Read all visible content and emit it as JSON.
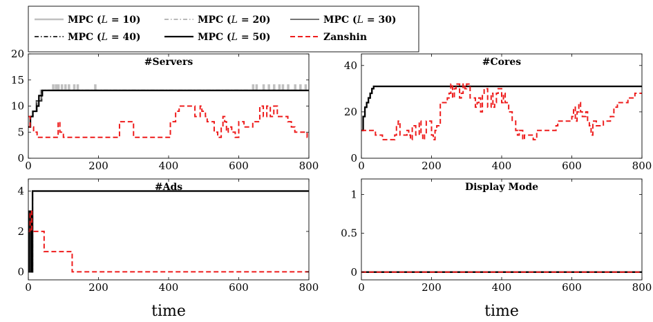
{
  "legend": {
    "entries": [
      {
        "label": "MPC (",
        "math": "L",
        "rest": " = 10)",
        "color": "#c0c0c0",
        "dash": "",
        "width": 2.5
      },
      {
        "label": "MPC (",
        "math": "L",
        "rest": " = 20)",
        "color": "#a0a0a0",
        "dash": "6 3 1.5 3",
        "width": 1.5
      },
      {
        "label": "MPC (",
        "math": "L",
        "rest": " = 30)",
        "color": "#606060",
        "dash": "",
        "width": 1.8
      },
      {
        "label": "MPC (",
        "math": "L",
        "rest": " = 40)",
        "color": "#333333",
        "dash": "6 3 1.5 3",
        "width": 2
      },
      {
        "label": "MPC (",
        "math": "L",
        "rest": " = 50)",
        "color": "#000000",
        "dash": "",
        "width": 2.2
      },
      {
        "label": "Zanshin",
        "math": "",
        "rest": "",
        "color": "#ee1c1c",
        "dash": "7 4",
        "width": 2
      }
    ]
  },
  "chart_data": [
    {
      "type": "line",
      "title": "#Servers",
      "xlabel": "",
      "xlim": [
        0,
        800
      ],
      "ylim": [
        0,
        20
      ],
      "xticks": [
        0,
        200,
        400,
        600,
        800
      ],
      "yticks": [
        0,
        5,
        10,
        15,
        20
      ],
      "series": [
        {
          "name": "MPC (L = 10)",
          "step": true,
          "color": "#c0c0c0",
          "dash": "",
          "width": 2.5,
          "x": [
            0,
            5,
            12,
            22,
            35,
            45,
            70,
            72,
            78,
            80,
            85,
            87,
            95,
            97,
            105,
            107,
            115,
            117,
            130,
            132,
            140,
            142,
            190,
            192,
            640,
            642,
            650,
            652,
            670,
            672,
            685,
            687,
            700,
            702,
            715,
            717,
            725,
            727,
            740,
            742,
            760,
            762,
            775,
            777,
            790,
            792,
            800
          ],
          "y": [
            6,
            8,
            9,
            11,
            13,
            13,
            14,
            13,
            14,
            13,
            14,
            13,
            14,
            13,
            14,
            13,
            14,
            13,
            14,
            13,
            14,
            13,
            14,
            13,
            14,
            13,
            14,
            13,
            14,
            13,
            14,
            13,
            14,
            13,
            14,
            13,
            14,
            13,
            14,
            13,
            14,
            13,
            14,
            13,
            14,
            13,
            13
          ]
        },
        {
          "name": "MPC (L = 20)",
          "step": true,
          "color": "#a0a0a0",
          "dash": "6 3 1.5 3",
          "width": 1.5,
          "x": [
            0,
            6,
            13,
            24,
            38,
            800
          ],
          "y": [
            6,
            8,
            9,
            11,
            13,
            13
          ]
        },
        {
          "name": "MPC (L = 30)",
          "step": true,
          "color": "#606060",
          "dash": "",
          "width": 1.8,
          "x": [
            0,
            6,
            13,
            24,
            38,
            800
          ],
          "y": [
            6,
            8,
            9,
            11,
            13,
            13
          ]
        },
        {
          "name": "MPC (L = 40)",
          "step": true,
          "color": "#333333",
          "dash": "6 3 1.5 3",
          "width": 2,
          "x": [
            0,
            6,
            13,
            24,
            38,
            800
          ],
          "y": [
            6,
            8,
            9,
            11,
            13,
            13
          ]
        },
        {
          "name": "MPC (L = 50)",
          "step": true,
          "color": "#000000",
          "dash": "",
          "width": 2.2,
          "x": [
            0,
            6,
            13,
            24,
            30,
            40,
            800
          ],
          "y": [
            6,
            8,
            9,
            10,
            12,
            13,
            13
          ]
        },
        {
          "name": "Zanshin",
          "step": true,
          "color": "#ee1c1c",
          "dash": "7 4",
          "width": 2,
          "x": [
            0,
            5,
            15,
            25,
            85,
            90,
            100,
            255,
            260,
            285,
            300,
            405,
            420,
            430,
            470,
            475,
            490,
            495,
            505,
            510,
            530,
            540,
            550,
            555,
            560,
            565,
            570,
            580,
            590,
            600,
            615,
            640,
            660,
            670,
            680,
            690,
            700,
            710,
            740,
            750,
            760,
            770,
            790,
            795,
            800
          ],
          "y": [
            8,
            6,
            5,
            4,
            7,
            5,
            4,
            4,
            7,
            7,
            4,
            7,
            9,
            10,
            10,
            8,
            10,
            9,
            8,
            7,
            5,
            4,
            6,
            8,
            7,
            5,
            6,
            5,
            4,
            7,
            6,
            7,
            10,
            8,
            10,
            8,
            10,
            8,
            7,
            6,
            5,
            5,
            5,
            4,
            4
          ]
        }
      ]
    },
    {
      "type": "line",
      "title": "#Cores",
      "xlabel": "",
      "xlim": [
        0,
        800
      ],
      "ylim": [
        0,
        45
      ],
      "xticks": [
        0,
        200,
        400,
        600,
        800
      ],
      "yticks": [
        0,
        20,
        40
      ],
      "series": [
        {
          "name": "MPC (L = 10)",
          "step": true,
          "color": "#c0c0c0",
          "dash": "",
          "width": 2.5,
          "x": [
            0,
            5,
            10,
            15,
            20,
            25,
            30,
            35,
            800
          ],
          "y": [
            12,
            18,
            22,
            24,
            26,
            28,
            30,
            31,
            31
          ]
        },
        {
          "name": "MPC (L = 20)",
          "step": true,
          "color": "#a0a0a0",
          "dash": "6 3 1.5 3",
          "width": 1.5,
          "x": [
            0,
            5,
            10,
            15,
            20,
            25,
            30,
            35,
            800
          ],
          "y": [
            12,
            18,
            22,
            24,
            26,
            28,
            30,
            31,
            31
          ]
        },
        {
          "name": "MPC (L = 30)",
          "step": true,
          "color": "#606060",
          "dash": "",
          "width": 1.8,
          "x": [
            0,
            5,
            10,
            15,
            20,
            25,
            30,
            35,
            800
          ],
          "y": [
            12,
            18,
            22,
            24,
            26,
            28,
            30,
            31,
            31
          ]
        },
        {
          "name": "MPC (L = 40)",
          "step": true,
          "color": "#333333",
          "dash": "6 3 1.5 3",
          "width": 2,
          "x": [
            0,
            5,
            10,
            15,
            20,
            25,
            30,
            35,
            800
          ],
          "y": [
            12,
            18,
            22,
            24,
            26,
            28,
            30,
            31,
            31
          ]
        },
        {
          "name": "MPC (L = 50)",
          "step": true,
          "color": "#000000",
          "dash": "",
          "width": 2.2,
          "x": [
            0,
            5,
            10,
            15,
            20,
            25,
            30,
            35,
            800
          ],
          "y": [
            12,
            18,
            22,
            24,
            26,
            28,
            30,
            31,
            31
          ]
        },
        {
          "name": "Zanshin",
          "step": true,
          "color": "#ee1c1c",
          "dash": "7 4",
          "width": 2,
          "x": [
            0,
            40,
            60,
            95,
            100,
            105,
            110,
            130,
            135,
            140,
            145,
            155,
            165,
            170,
            175,
            180,
            185,
            200,
            205,
            210,
            215,
            225,
            245,
            250,
            255,
            260,
            265,
            270,
            280,
            285,
            290,
            295,
            300,
            310,
            325,
            330,
            335,
            340,
            345,
            350,
            360,
            370,
            375,
            380,
            385,
            390,
            400,
            405,
            410,
            420,
            430,
            440,
            445,
            450,
            460,
            465,
            490,
            500,
            540,
            555,
            560,
            595,
            600,
            605,
            610,
            615,
            620,
            625,
            630,
            640,
            645,
            650,
            655,
            660,
            670,
            690,
            700,
            710,
            720,
            730,
            740,
            760,
            780,
            790,
            800
          ],
          "y": [
            12,
            10,
            8,
            10,
            14,
            16,
            10,
            12,
            10,
            8,
            14,
            10,
            16,
            10,
            8,
            10,
            16,
            10,
            8,
            12,
            14,
            24,
            26,
            28,
            32,
            26,
            30,
            32,
            26,
            28,
            32,
            30,
            32,
            26,
            22,
            24,
            26,
            20,
            28,
            30,
            22,
            28,
            22,
            24,
            28,
            30,
            24,
            28,
            24,
            20,
            16,
            12,
            10,
            12,
            8,
            10,
            8,
            12,
            12,
            14,
            16,
            16,
            18,
            22,
            16,
            20,
            24,
            20,
            18,
            20,
            16,
            14,
            10,
            16,
            14,
            16,
            16,
            18,
            22,
            24,
            24,
            26,
            28,
            28,
            28
          ]
        }
      ]
    },
    {
      "type": "line",
      "title": "#Ads",
      "xlabel": "time",
      "xlim": [
        0,
        800
      ],
      "ylim": [
        -0.4,
        4.6
      ],
      "xticks": [
        0,
        200,
        400,
        600,
        800
      ],
      "yticks": [
        0,
        2,
        4
      ],
      "series": [
        {
          "name": "MPC (L = 10)",
          "step": true,
          "color": "#c0c0c0",
          "dash": "",
          "width": 2.5,
          "x": [
            0,
            3,
            8,
            12,
            800
          ],
          "y": [
            0,
            3,
            0,
            4,
            4
          ]
        },
        {
          "name": "MPC (L = 20)",
          "step": true,
          "color": "#a0a0a0",
          "dash": "6 3 1.5 3",
          "width": 1.5,
          "x": [
            0,
            3,
            8,
            12,
            800
          ],
          "y": [
            0,
            3,
            0,
            4,
            4
          ]
        },
        {
          "name": "MPC (L = 30)",
          "step": true,
          "color": "#606060",
          "dash": "",
          "width": 1.8,
          "x": [
            0,
            3,
            8,
            12,
            800
          ],
          "y": [
            0,
            3,
            0,
            4,
            4
          ]
        },
        {
          "name": "MPC (L = 40)",
          "step": true,
          "color": "#333333",
          "dash": "6 3 1.5 3",
          "width": 2,
          "x": [
            0,
            3,
            8,
            12,
            800
          ],
          "y": [
            0,
            3,
            0,
            4,
            4
          ]
        },
        {
          "name": "MPC (L = 50)",
          "step": true,
          "color": "#000000",
          "dash": "",
          "width": 2.2,
          "x": [
            0,
            3,
            8,
            12,
            800
          ],
          "y": [
            0,
            3,
            0,
            4,
            4
          ]
        },
        {
          "name": "Zanshin",
          "step": true,
          "color": "#ee1c1c",
          "dash": "7 4",
          "width": 2,
          "x": [
            0,
            5,
            10,
            18,
            45,
            50,
            125,
            130,
            800
          ],
          "y": [
            2,
            3,
            2,
            2,
            1,
            1,
            0,
            0,
            0
          ]
        }
      ]
    },
    {
      "type": "line",
      "title": "Display Mode",
      "xlabel": "time",
      "xlim": [
        0,
        800
      ],
      "ylim": [
        -0.1,
        1.2
      ],
      "xticks": [
        0,
        200,
        400,
        600,
        800
      ],
      "yticks": [
        0,
        0.5,
        1
      ],
      "series": [
        {
          "name": "MPC (L = 10)",
          "step": true,
          "color": "#c0c0c0",
          "dash": "",
          "width": 2.5,
          "x": [
            0,
            800
          ],
          "y": [
            0,
            0
          ]
        },
        {
          "name": "MPC (L = 20)",
          "step": true,
          "color": "#a0a0a0",
          "dash": "6 3 1.5 3",
          "width": 1.5,
          "x": [
            0,
            800
          ],
          "y": [
            0,
            0
          ]
        },
        {
          "name": "MPC (L = 30)",
          "step": true,
          "color": "#606060",
          "dash": "",
          "width": 1.8,
          "x": [
            0,
            800
          ],
          "y": [
            0,
            0
          ]
        },
        {
          "name": "MPC (L = 40)",
          "step": true,
          "color": "#333333",
          "dash": "6 3 1.5 3",
          "width": 2,
          "x": [
            0,
            800
          ],
          "y": [
            0,
            0
          ]
        },
        {
          "name": "MPC (L = 50)",
          "step": true,
          "color": "#000000",
          "dash": "",
          "width": 2.2,
          "x": [
            0,
            800
          ],
          "y": [
            0,
            0
          ]
        },
        {
          "name": "Zanshin",
          "step": true,
          "color": "#ee1c1c",
          "dash": "7 4",
          "width": 2,
          "x": [
            0,
            800
          ],
          "y": [
            0,
            0
          ]
        }
      ]
    }
  ]
}
